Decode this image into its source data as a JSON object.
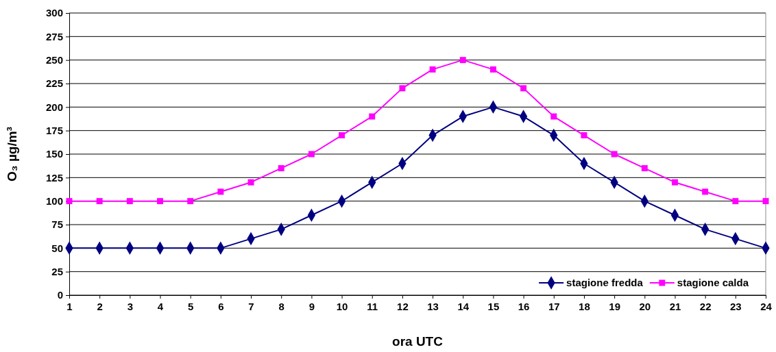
{
  "chart_data": {
    "type": "line",
    "xlabel": "ora UTC",
    "ylabel": "O₃ µg/m³",
    "x": [
      1,
      2,
      3,
      4,
      5,
      6,
      7,
      8,
      9,
      10,
      11,
      12,
      13,
      14,
      15,
      16,
      17,
      18,
      19,
      20,
      21,
      22,
      23,
      24
    ],
    "xlim": [
      1,
      24
    ],
    "xticks": [
      1,
      2,
      3,
      4,
      5,
      6,
      7,
      8,
      9,
      10,
      11,
      12,
      13,
      14,
      15,
      16,
      17,
      18,
      19,
      20,
      21,
      22,
      23,
      24
    ],
    "ylim": [
      0,
      300
    ],
    "yticks": [
      0,
      25,
      50,
      75,
      100,
      125,
      150,
      175,
      200,
      225,
      250,
      275,
      300
    ],
    "grid": "y",
    "legend": "bottom right",
    "series": [
      {
        "name": "stagione fredda",
        "color": "#000080",
        "marker": "diamond",
        "values": [
          50,
          50,
          50,
          50,
          50,
          50,
          60,
          70,
          85,
          100,
          120,
          140,
          170,
          190,
          200,
          190,
          170,
          140,
          120,
          100,
          85,
          70,
          60,
          50
        ]
      },
      {
        "name": "stagione calda",
        "color": "#ff00ff",
        "marker": "square",
        "values": [
          100,
          100,
          100,
          100,
          100,
          110,
          120,
          135,
          150,
          170,
          190,
          220,
          240,
          250,
          240,
          220,
          190,
          170,
          150,
          135,
          120,
          110,
          100,
          100
        ]
      }
    ]
  }
}
